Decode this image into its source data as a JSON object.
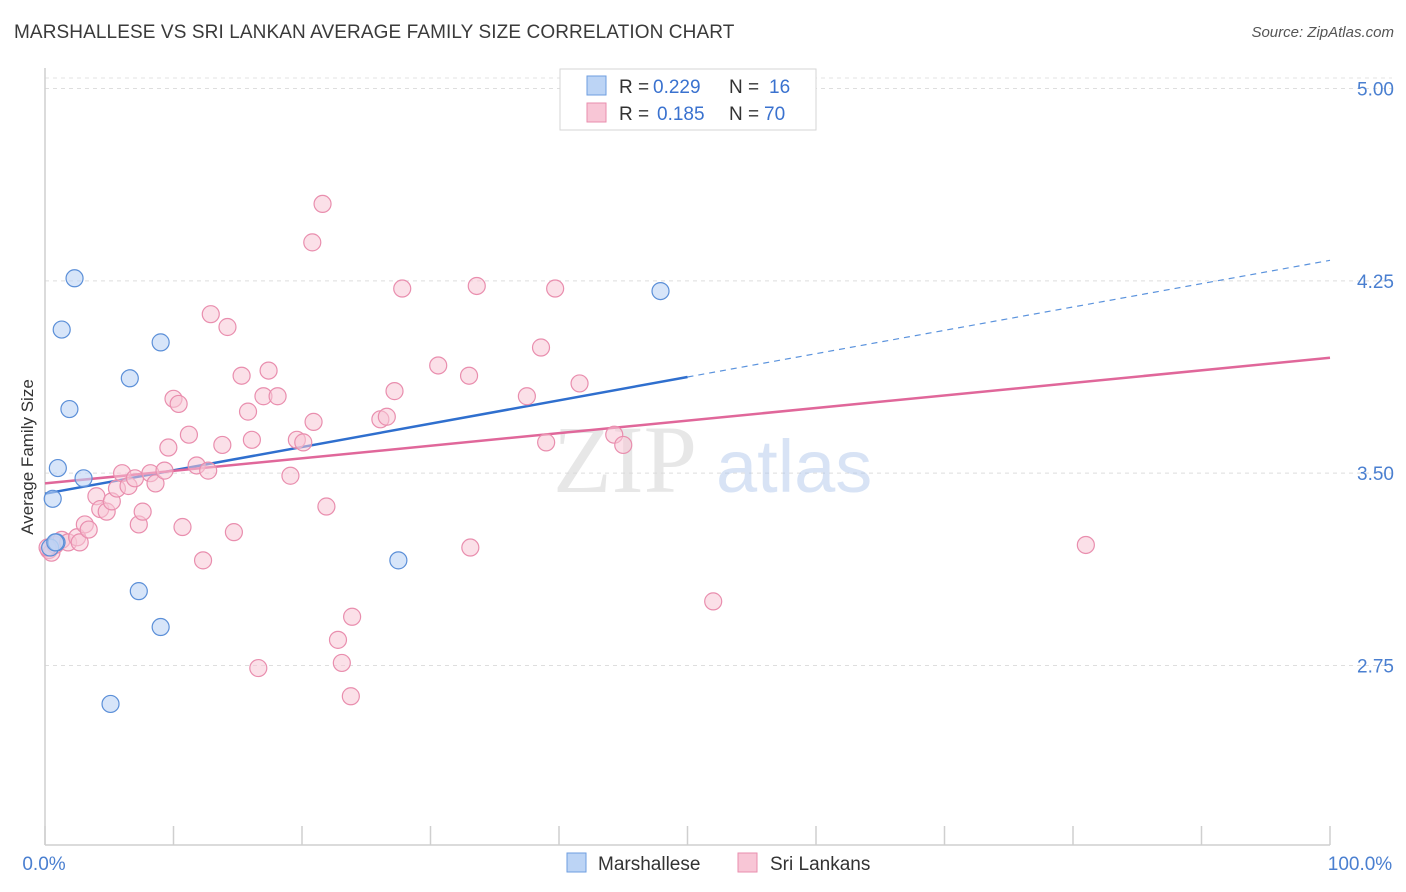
{
  "title": "MARSHALLESE VS SRI LANKAN AVERAGE FAMILY SIZE CORRELATION CHART",
  "source": "Source: ZipAtlas.com",
  "watermark": {
    "zip": "ZIP",
    "atlas": "atlas"
  },
  "colors": {
    "blue": "#5b93dd",
    "blue_fill": "#bcd4f5",
    "pink": "#e86f9b",
    "pink_fill": "#f8c6d6",
    "accent_text": "#3a72cf"
  },
  "stats_legend": [
    {
      "r_label": "R =",
      "r_value": "0.229",
      "n_label": "N =",
      "n_value": "16"
    },
    {
      "r_label": "R =",
      "r_value": "0.185",
      "n_label": "N =",
      "n_value": "70"
    }
  ],
  "chart_data": {
    "type": "scatter",
    "title": "MARSHALLESE VS SRI LANKAN AVERAGE FAMILY SIZE CORRELATION CHART",
    "xlabel": "",
    "ylabel": "Average Family Size",
    "xlim": [
      0,
      100
    ],
    "ylim": [
      2.05,
      5.08
    ],
    "x_tick_labels": [
      "0.0%",
      "100.0%"
    ],
    "y_ticks": [
      2.75,
      3.5,
      4.25,
      5.0
    ],
    "y_tick_labels": [
      "2.75",
      "3.50",
      "4.25",
      "5.00"
    ],
    "grid": "horizontal dashed",
    "legend_position": "bottom-center",
    "series": [
      {
        "name": "Marshallese",
        "points": [
          [
            0.4,
            3.21
          ],
          [
            0.6,
            3.4
          ],
          [
            0.9,
            3.23
          ],
          [
            1.0,
            3.52
          ],
          [
            1.3,
            4.06
          ],
          [
            1.9,
            3.75
          ],
          [
            2.3,
            4.26
          ],
          [
            3.0,
            3.48
          ],
          [
            5.1,
            2.6
          ],
          [
            6.6,
            3.87
          ],
          [
            7.3,
            3.04
          ],
          [
            9.0,
            2.9
          ],
          [
            9.0,
            4.01
          ],
          [
            27.5,
            3.16
          ],
          [
            47.9,
            4.21
          ],
          [
            0.8,
            3.23
          ]
        ],
        "trend": {
          "x0": 0,
          "y0": 3.42,
          "x1": 100,
          "y1": 4.33,
          "solid_until": 50
        }
      },
      {
        "name": "Sri Lankans",
        "points": [
          [
            0.3,
            3.2
          ],
          [
            0.5,
            3.19
          ],
          [
            0.8,
            3.22
          ],
          [
            1.3,
            3.24
          ],
          [
            1.8,
            3.23
          ],
          [
            2.5,
            3.25
          ],
          [
            2.7,
            3.23
          ],
          [
            3.1,
            3.3
          ],
          [
            3.4,
            3.28
          ],
          [
            4.0,
            3.41
          ],
          [
            4.3,
            3.36
          ],
          [
            4.8,
            3.35
          ],
          [
            5.2,
            3.39
          ],
          [
            5.6,
            3.44
          ],
          [
            6.0,
            3.5
          ],
          [
            6.5,
            3.45
          ],
          [
            7.0,
            3.48
          ],
          [
            7.3,
            3.3
          ],
          [
            7.6,
            3.35
          ],
          [
            8.2,
            3.5
          ],
          [
            8.6,
            3.46
          ],
          [
            9.3,
            3.51
          ],
          [
            9.6,
            3.6
          ],
          [
            10.0,
            3.79
          ],
          [
            10.4,
            3.77
          ],
          [
            10.7,
            3.29
          ],
          [
            11.2,
            3.65
          ],
          [
            11.8,
            3.53
          ],
          [
            12.3,
            3.16
          ],
          [
            12.7,
            3.51
          ],
          [
            12.9,
            4.12
          ],
          [
            13.8,
            3.61
          ],
          [
            14.2,
            4.07
          ],
          [
            14.7,
            3.27
          ],
          [
            15.3,
            3.88
          ],
          [
            15.8,
            3.74
          ],
          [
            16.1,
            3.63
          ],
          [
            16.6,
            2.74
          ],
          [
            17.0,
            3.8
          ],
          [
            17.4,
            3.9
          ],
          [
            18.1,
            3.8
          ],
          [
            19.1,
            3.49
          ],
          [
            19.6,
            3.63
          ],
          [
            20.1,
            3.62
          ],
          [
            20.8,
            4.4
          ],
          [
            20.9,
            3.7
          ],
          [
            21.6,
            4.55
          ],
          [
            21.9,
            3.37
          ],
          [
            22.8,
            2.85
          ],
          [
            23.1,
            2.76
          ],
          [
            23.8,
            2.63
          ],
          [
            23.9,
            2.94
          ],
          [
            26.1,
            3.71
          ],
          [
            26.6,
            3.72
          ],
          [
            27.2,
            3.82
          ],
          [
            27.8,
            4.22
          ],
          [
            30.6,
            3.92
          ],
          [
            33.0,
            3.88
          ],
          [
            33.1,
            3.21
          ],
          [
            33.6,
            4.23
          ],
          [
            37.5,
            3.8
          ],
          [
            38.6,
            3.99
          ],
          [
            39.0,
            3.62
          ],
          [
            39.7,
            4.22
          ],
          [
            41.6,
            3.85
          ],
          [
            44.3,
            3.65
          ],
          [
            45.0,
            3.61
          ],
          [
            52.0,
            3.0
          ],
          [
            81.0,
            3.22
          ],
          [
            0.2,
            3.21
          ]
        ],
        "trend": {
          "x0": 0,
          "y0": 3.46,
          "x1": 100,
          "y1": 3.95
        }
      }
    ]
  }
}
